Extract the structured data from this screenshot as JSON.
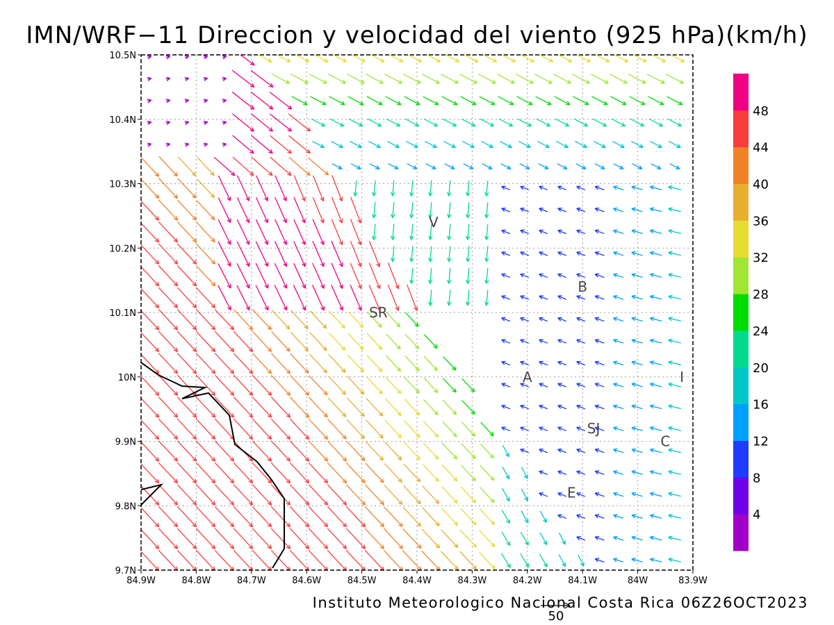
{
  "title": "IMN/WRF−11 Direccion y velocidad del viento (925 hPa)(km/h)",
  "footer": "Instituto Meteorologico Nacional Costa Rica 06Z26OCT2023",
  "reference_vector_label": "50",
  "map": {
    "lon_range": [
      -84.9,
      -83.9
    ],
    "lat_range": [
      9.7,
      10.5
    ],
    "x_ticks": [
      "84.9W",
      "84.8W",
      "84.7W",
      "84.6W",
      "84.5W",
      "84.4W",
      "84.3W",
      "84.2W",
      "84.1W",
      "84W",
      "83.9W"
    ],
    "y_ticks": [
      "10.5N",
      "10.4N",
      "10.3N",
      "10.2N",
      "10.1N",
      "10N",
      "9.9N",
      "9.8N",
      "9.7N"
    ],
    "grid": true,
    "coastline": true
  },
  "places": [
    {
      "label": "V",
      "lon": -84.37,
      "lat": 10.24
    },
    {
      "label": "SR",
      "lon": -84.47,
      "lat": 10.1
    },
    {
      "label": "B",
      "lon": -84.1,
      "lat": 10.14
    },
    {
      "label": "A",
      "lon": -84.2,
      "lat": 10.0
    },
    {
      "label": "I",
      "lon": -83.92,
      "lat": 10.0
    },
    {
      "label": "SJ",
      "lon": -84.08,
      "lat": 9.92
    },
    {
      "label": "C",
      "lon": -83.95,
      "lat": 9.9
    },
    {
      "label": "E",
      "lon": -84.12,
      "lat": 9.82
    }
  ],
  "colorbar": {
    "labels": [
      "4",
      "8",
      "12",
      "16",
      "20",
      "24",
      "28",
      "32",
      "36",
      "40",
      "44",
      "48"
    ],
    "colors": [
      "#a000c8",
      "#7000e6",
      "#1e3cff",
      "#00a0ff",
      "#00c8c8",
      "#00dc8c",
      "#00dc00",
      "#a0e632",
      "#e6dc32",
      "#e6af2d",
      "#f08228",
      "#fa3c3c",
      "#f00082"
    ]
  }
}
